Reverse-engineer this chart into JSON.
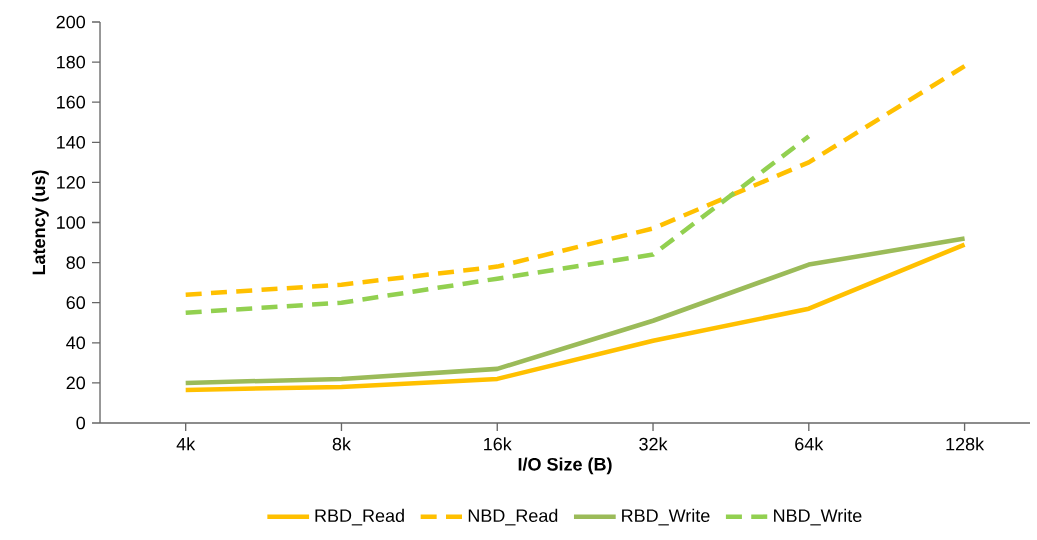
{
  "chart_data": {
    "type": "line",
    "xlabel": "I/O Size (B)",
    "ylabel": "Latency (us)",
    "categories": [
      "4k",
      "8k",
      "16k",
      "32k",
      "64k",
      "128k"
    ],
    "ylim": [
      0,
      200
    ],
    "yticks": [
      0,
      20,
      40,
      60,
      80,
      100,
      120,
      140,
      160,
      180,
      200
    ],
    "grid": false,
    "legend": "bottom",
    "marker": "none",
    "series": [
      {
        "name": "RBD_Read",
        "color": "#ffc000",
        "line_style": "solid",
        "values": [
          16.5,
          18,
          22,
          41,
          57,
          89
        ]
      },
      {
        "name": "NBD_Read",
        "color": "#ffc000",
        "line_style": "dashed",
        "values": [
          64,
          69,
          78,
          97,
          130,
          178
        ]
      },
      {
        "name": "RBD_Write",
        "color": "#9bbb59",
        "line_style": "solid",
        "values": [
          20,
          22,
          27,
          51,
          79,
          92
        ]
      },
      {
        "name": "NBD_Write",
        "color": "#92d050",
        "line_style": "dashed",
        "values": [
          55,
          60,
          72,
          84,
          143,
          null
        ]
      }
    ]
  }
}
